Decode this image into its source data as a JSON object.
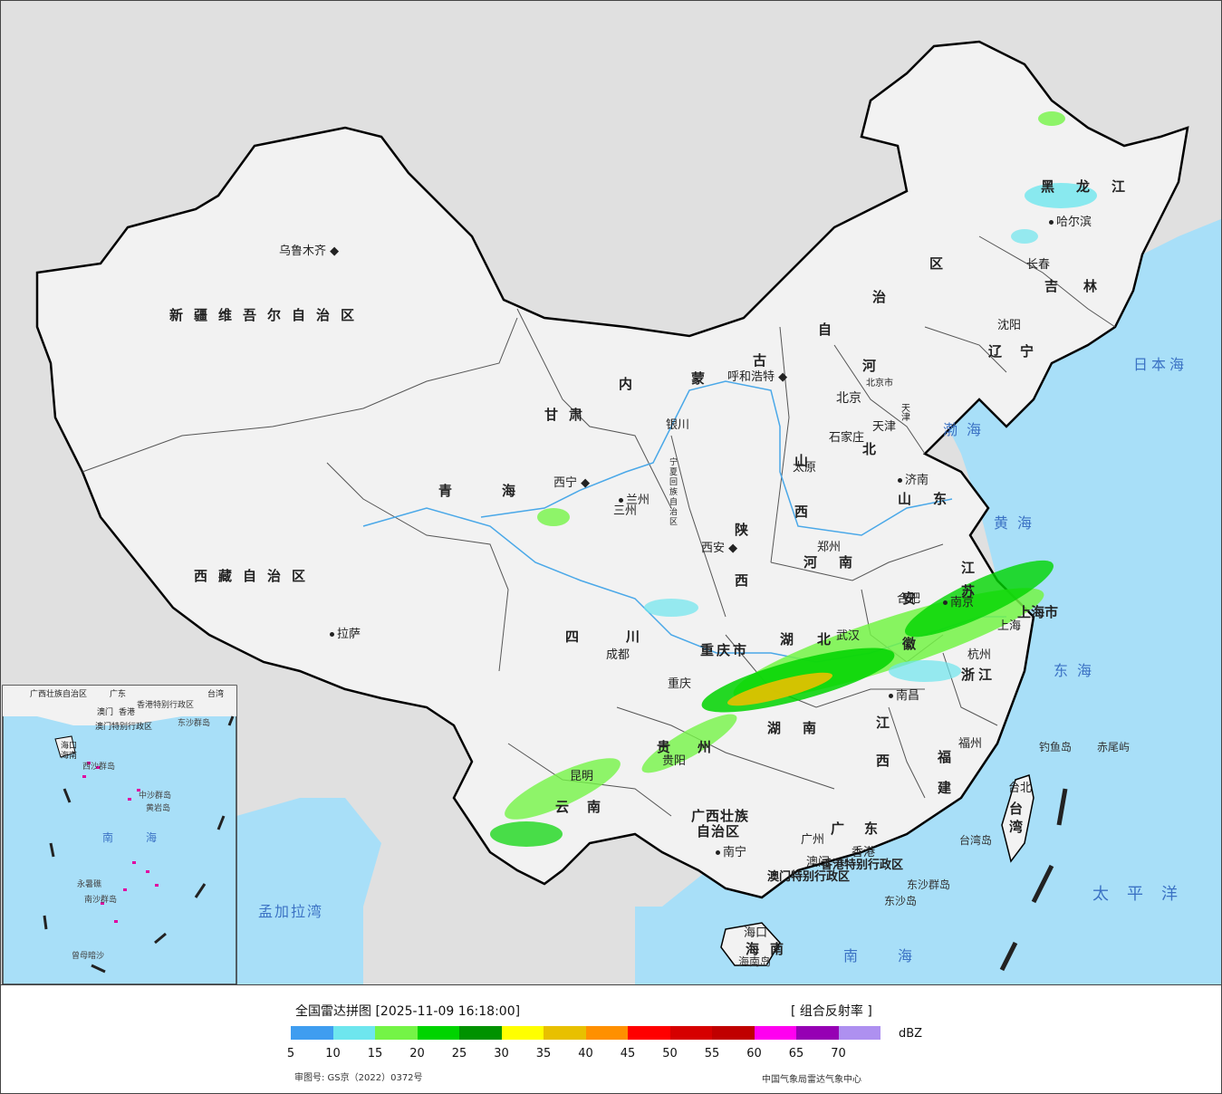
{
  "legend": {
    "title": "全国雷达拼图 [2025-11-09 16:18:00]",
    "product": "[ 组合反射率 ]",
    "unit": "dBZ",
    "approval_number": "审图号: GS京（2022）0372号",
    "agency": "中国气象局雷达气象中心",
    "ticks": [
      "5",
      "10",
      "15",
      "20",
      "25",
      "30",
      "35",
      "40",
      "45",
      "50",
      "55",
      "60",
      "65",
      "70"
    ],
    "colors": [
      "#3f9df0",
      "#6ee6ee",
      "#74f446",
      "#00d400",
      "#009200",
      "#ffff00",
      "#e8c000",
      "#ff9000",
      "#ff0000",
      "#d60000",
      "#c00000",
      "#ff00f0",
      "#9600b4",
      "#ae90f0"
    ]
  },
  "map_colors": {
    "land": "#f2f2f2",
    "ocean": "#a8dff8",
    "outside": "#e0e0e0",
    "border": "#000000",
    "province_line": "#555555",
    "river": "#4aa8e8"
  },
  "provinces": {
    "xinjiang": "新疆维吾尔自治区",
    "xizang": "西藏自治区",
    "qinghai": "青海",
    "gansu": "甘肃",
    "neimenggu_1": "内",
    "neimenggu_2": "蒙",
    "neimenggu_3": "古",
    "neimenggu_4": "自",
    "neimenggu_5": "治",
    "neimenggu_6": "区",
    "heilongjiang": "黑龙江",
    "jilin": "吉林",
    "liaoning": "辽宁",
    "hebei_1": "河",
    "hebei_2": "北",
    "shanxi": "山西",
    "shandong": "山东",
    "henan": "河南",
    "shaanxi": "陕西",
    "ningxia": "宁夏回族自治区",
    "sichuan": "四川",
    "chongqing": "重庆市",
    "hubei": "湖北",
    "hunan": "湖南",
    "jiangxi": "江西",
    "anhui": "安徽",
    "jiangsu": "江苏",
    "zhejiang": "浙江",
    "fujian": "福建",
    "guangdong": "广东",
    "guangxi_1": "广西壮族",
    "guangxi_2": "自治区",
    "guizhou": "贵州",
    "yunnan": "云南",
    "hainan": "海南",
    "taiwan": "台湾",
    "shanghai": "上海市",
    "hongkong": "香港特别行政区",
    "macao": "澳门特别行政区",
    "beijing": "北京",
    "beijing_city": "北京市",
    "tianjin": "天津",
    "gansu_city": "三州"
  },
  "cities": {
    "urumqi": "乌鲁木齐",
    "lhasa": "拉萨",
    "xining": "西宁",
    "lanzhou": "兰州",
    "yinchuan": "银川",
    "huhehaote": "呼和浩特",
    "harbin": "哈尔滨",
    "changchun": "长春",
    "shenyang": "沈阳",
    "shijiazhuang": "石家庄",
    "taiyuan": "太原",
    "jinan": "济南",
    "zhengzhou": "郑州",
    "xian": "西安",
    "chengdu": "成都",
    "chongqing": "重庆",
    "wuhan": "武汉",
    "hefei": "合肥",
    "nanjing": "南京",
    "hangzhou": "杭州",
    "nanchang": "南昌",
    "fuzhou": "福州",
    "guiyang": "贵阳",
    "kunming": "昆明",
    "nanning": "南宁",
    "guangzhou": "广州",
    "macau": "澳门",
    "hk": "香港",
    "haikou": "海口",
    "taibei": "台北",
    "shanghai_city": "上海",
    "tianjin_city": "天津"
  },
  "seas": {
    "japan": "日本海",
    "bohai": "渤海",
    "yellow": "黄海",
    "east": "东海",
    "south": "南海",
    "pacific": "太平洋",
    "bengal": "孟加拉湾"
  },
  "islands": {
    "diaoyu": "钓鱼岛",
    "chiwei": "赤尾屿",
    "dongsha": "东沙群岛",
    "dongsha2": "东沙岛",
    "taiwan_island": "台湾岛",
    "hainan_island": "海南岛"
  },
  "inset": {
    "labels": [
      "广西壮族自治区",
      "广东",
      "台湾",
      "澳门",
      "香港",
      "香港特别行政区",
      "澳门特别行政区",
      "东沙群岛",
      "海口",
      "海南",
      "西沙群岛",
      "中沙群岛",
      "黄岩岛",
      "南",
      "海",
      "南沙群岛",
      "永暑礁",
      "曾母暗沙"
    ]
  }
}
